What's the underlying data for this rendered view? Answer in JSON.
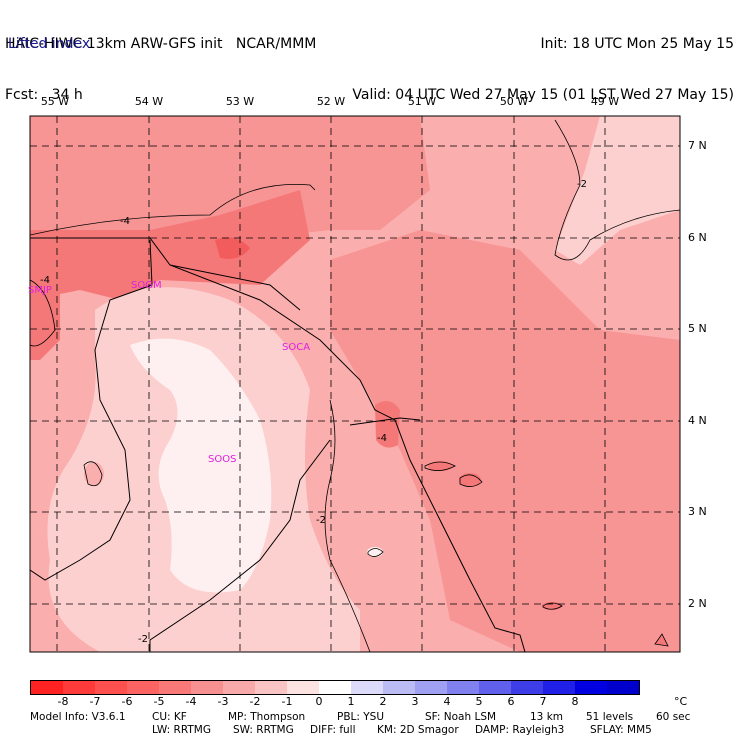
{
  "header": {
    "line1_left": "HAIC-HIWC 13km ARW-GFS init   NCAR/MMM",
    "line2_left": "Fcst:   34 h",
    "line1_right": "Init: 18 UTC Mon 25 May 15",
    "line2_right": "Valid: 04 UTC Wed 27 May 15 (01 LST Wed 27 May 15)",
    "field": "Lifted index"
  },
  "map": {
    "longitude_labels": [
      "55 W",
      "54 W",
      "53 W",
      "52 W",
      "51 W",
      "50 W",
      "49 W"
    ],
    "latitude_labels": [
      "7 N",
      "6 N",
      "5 N",
      "4 N",
      "3 N",
      "2 N"
    ],
    "station_labels": [
      "SMJP",
      "SOGM",
      "SOCA",
      "SOOS"
    ],
    "contour_labels": [
      "-4",
      "-4",
      "-2",
      "-4",
      "-2",
      "-2"
    ],
    "colors": {
      "c_neg1": "#fdd0d0",
      "c_neg2": "#fbaeae",
      "c_neg3": "#f79494",
      "c_neg4": "#f57878",
      "c_neg5": "#f25c5c",
      "c_pos": "#fef0f0",
      "station": "#e020e0"
    }
  },
  "colorbar": {
    "labels": [
      "-8",
      "-7",
      "-6",
      "-5",
      "-4",
      "-3",
      "-2",
      "-1",
      "0",
      "1",
      "2",
      "3",
      "4",
      "5",
      "6",
      "7",
      "8"
    ],
    "unit": "°C",
    "colors": [
      "#ff2222",
      "#ff3a3a",
      "#ff5050",
      "#fc6464",
      "#f97878",
      "#f79090",
      "#f8aaaa",
      "#fbc4c4",
      "#fde2e2",
      "#ffffff",
      "#dcdcfa",
      "#bcbcf5",
      "#a0a0f2",
      "#8080ee",
      "#6060ec",
      "#3e3ee8",
      "#2020e6",
      "#0000e0",
      "#0000cc"
    ]
  },
  "footer": {
    "line1": [
      "Model Info: V3.6.1",
      "CU: KF",
      "MP: Thompson",
      "PBL: YSU",
      "SF: Noah LSM",
      "13 km",
      "51 levels",
      "60 sec"
    ],
    "line2": [
      "LW: RRTMG",
      "SW: RRTMG",
      "DIFF: full",
      "KM: 2D Smagor",
      "DAMP: Rayleigh3",
      "SFLAY: MM5"
    ]
  }
}
